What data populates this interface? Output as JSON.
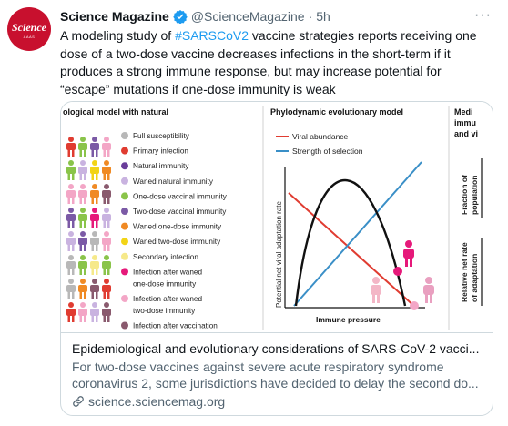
{
  "account": {
    "avatar_logo": "Science",
    "avatar_sub": "AAAS",
    "name": "Science Magazine",
    "handle": "@ScienceMagazine",
    "separator": "·",
    "time": "5h"
  },
  "more_label": "···",
  "tweet": {
    "text_before": "A modeling study of ",
    "hashtag": "#SARSCoV2",
    "text_after": " vaccine strategies reports receiving one dose of a two-dose vaccine decreases infections in the short-term if it produces a strong immune response, but may increase potential for “escape” mutations if one-dose immunity is weak"
  },
  "card": {
    "title": "Epidemiological and evolutionary considerations of SARS-CoV-2 vacci...",
    "description": "For two-dose vaccines against severe acute respiratory syndrome coronavirus 2, some jurisdictions have decided to delay the second do...",
    "link": "science.sciencemag.org"
  },
  "figure": {
    "left_title": "ological model with natural",
    "legend": [
      {
        "label": "Full susceptibility",
        "color": "#b8b8b8"
      },
      {
        "label": "Primary infection",
        "color": "#e03c31"
      },
      {
        "label": "Natural immunity",
        "color": "#6a3d9a"
      },
      {
        "label": "Waned natural immunity",
        "color": "#c9b3e0"
      },
      {
        "label": "One-dose vaccinal immunity",
        "color": "#8ac44a"
      },
      {
        "label": "Two-dose vaccinal immunity",
        "color": "#7b5aa6"
      },
      {
        "label": "Waned one-dose immunity",
        "color": "#f08a24"
      },
      {
        "label": "Waned two-dose immunity",
        "color": "#f2d416"
      },
      {
        "label": "Secondary infection",
        "color": "#f6e98a"
      },
      {
        "label": "Infection after waned",
        "label2": "one-dose immunity",
        "color": "#e6197a"
      },
      {
        "label": "Infection after waned",
        "label2": "two-dose immunity",
        "color": "#f3a6c6"
      },
      {
        "label": "Infection after vaccination",
        "color": "#8a5a6e"
      }
    ],
    "mid_title": "Phylodynamic evolutionary model",
    "series_labels": [
      "Viral abundance",
      "Strength of selection"
    ],
    "series_colors": [
      "#e03c31",
      "#3a8fc7"
    ],
    "y_axis_label": "Potential net viral adaptation rate",
    "x_axis_label": "Immune pressure",
    "right_title": [
      "Medi",
      "immu",
      "and vi"
    ],
    "right_axis_1": [
      "Fraction of",
      "population"
    ],
    "right_axis_2": [
      "Relative net rate",
      "of adaptation"
    ]
  }
}
